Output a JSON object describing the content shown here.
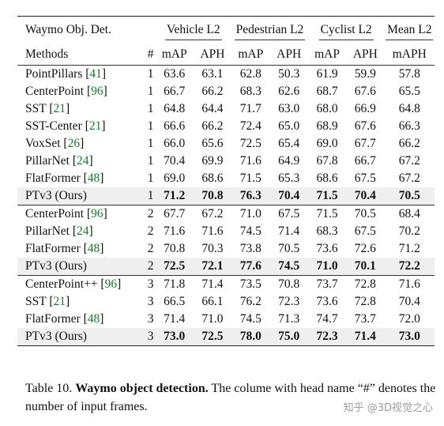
{
  "header": {
    "dataset": "Waymo Obj. Det.",
    "groups": [
      "Vehicle L2",
      "Pedestrian L2",
      "Cyclist L2",
      "Mean L2"
    ],
    "methods": "Methods",
    "frames": "#",
    "metrics": [
      "mAP",
      "APH",
      "mAP",
      "APH",
      "mAP",
      "APH",
      "mAPH"
    ]
  },
  "sections": [
    {
      "rows": [
        {
          "name": "PointPillars",
          "ref": "41",
          "frames": "1",
          "vals": [
            "63.6",
            "63.1",
            "62.8",
            "50.3",
            "61.9",
            "59.9",
            "57.8"
          ]
        },
        {
          "name": "CenterPoint",
          "ref": "96",
          "frames": "1",
          "vals": [
            "66.7",
            "66.2",
            "68.3",
            "62.6",
            "68.7",
            "67.6",
            "65.5"
          ]
        },
        {
          "name": "SST",
          "ref": "21",
          "frames": "1",
          "vals": [
            "64.8",
            "64.4",
            "71.7",
            "63.0",
            "68.0",
            "66.9",
            "64.8"
          ]
        },
        {
          "name": "SST-Center",
          "ref": "21",
          "frames": "1",
          "vals": [
            "66.6",
            "66.2",
            "72.4",
            "65.0",
            "68.9",
            "67.6",
            "66.3"
          ]
        },
        {
          "name": "VoxSet",
          "ref": "26",
          "frames": "1",
          "vals": [
            "66.0",
            "65.6",
            "72.5",
            "65.4",
            "69.0",
            "67.7",
            "66.2"
          ]
        },
        {
          "name": "PillarNet",
          "ref": "24",
          "frames": "1",
          "vals": [
            "70.4",
            "69.9",
            "71.6",
            "64.9",
            "67.8",
            "66.7",
            "67.2"
          ]
        },
        {
          "name": "FlatFormer",
          "ref": "48",
          "frames": "1",
          "vals": [
            "69.0",
            "68.6",
            "71.5",
            "65.3",
            "68.6",
            "67.5",
            "67.2"
          ]
        },
        {
          "name": "PTv3 (Ours)",
          "ref": "",
          "frames": "1",
          "vals": [
            "71.2",
            "70.8",
            "76.3",
            "70.4",
            "71.5",
            "70.4",
            "70.5"
          ],
          "ours": true
        }
      ]
    },
    {
      "rows": [
        {
          "name": "CenterPoint",
          "ref": "96",
          "frames": "2",
          "vals": [
            "67.7",
            "67.2",
            "71.0",
            "67.5",
            "71.5",
            "70.5",
            "68.4"
          ]
        },
        {
          "name": "PillarNet",
          "ref": "24",
          "frames": "2",
          "vals": [
            "71.6",
            "71.6",
            "74.5",
            "71.4",
            "68.3",
            "67.5",
            "70.2"
          ]
        },
        {
          "name": "FlatFormer",
          "ref": "48",
          "frames": "2",
          "vals": [
            "70.8",
            "70.3",
            "73.8",
            "70.5",
            "73.6",
            "72.6",
            "71.2"
          ]
        },
        {
          "name": "PTv3 (Ours)",
          "ref": "",
          "frames": "2",
          "vals": [
            "72.5",
            "72.1",
            "77.6",
            "74.5",
            "71.0",
            "70.1",
            "72.2"
          ],
          "ours": true
        }
      ]
    },
    {
      "rows": [
        {
          "name": "CenterPoint++",
          "ref": "96",
          "frames": "3",
          "vals": [
            "71.8",
            "71.4",
            "73.5",
            "70.8",
            "73.7",
            "72.8",
            "71.6"
          ]
        },
        {
          "name": "SST",
          "ref": "21",
          "frames": "3",
          "vals": [
            "66.5",
            "66.1",
            "76.2",
            "72.3",
            "73.6",
            "72.8",
            "70.4"
          ]
        },
        {
          "name": "FlatFormer",
          "ref": "48",
          "frames": "3",
          "vals": [
            "71.4",
            "71.0",
            "74.5",
            "71.3",
            "74.7",
            "73.7",
            "72.0"
          ]
        },
        {
          "name": "PTv3 (Ours)",
          "ref": "",
          "frames": "3",
          "vals": [
            "73.0",
            "72.5",
            "78.0",
            "75.0",
            "72.3",
            "71.4",
            "73.0"
          ],
          "ours": true
        }
      ]
    }
  ],
  "caption": {
    "prefix": "Table 10. ",
    "bold": "Waymo object detection.",
    "rest": " The colume with head name “#” denotes the number of input frames."
  },
  "watermark": "知乎 @3D视觉之心",
  "colors": {
    "citation": "#1a7a2a",
    "highlight_row": "#efefef"
  }
}
